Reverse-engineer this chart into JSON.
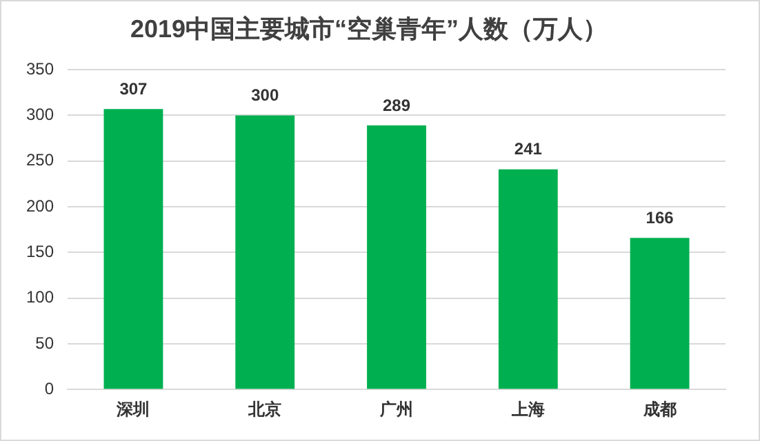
{
  "chart_data": {
    "type": "bar",
    "title": "2019中国主要城市“空巢青年”人数（万人）",
    "categories": [
      "深圳",
      "北京",
      "广州",
      "上海",
      "成都"
    ],
    "values": [
      307,
      300,
      289,
      241,
      166
    ],
    "color": "#00b050",
    "ylim": [
      0,
      350
    ],
    "yticks": [
      0,
      50,
      100,
      150,
      200,
      250,
      300,
      350
    ],
    "grid": "y",
    "data_labels": true
  }
}
